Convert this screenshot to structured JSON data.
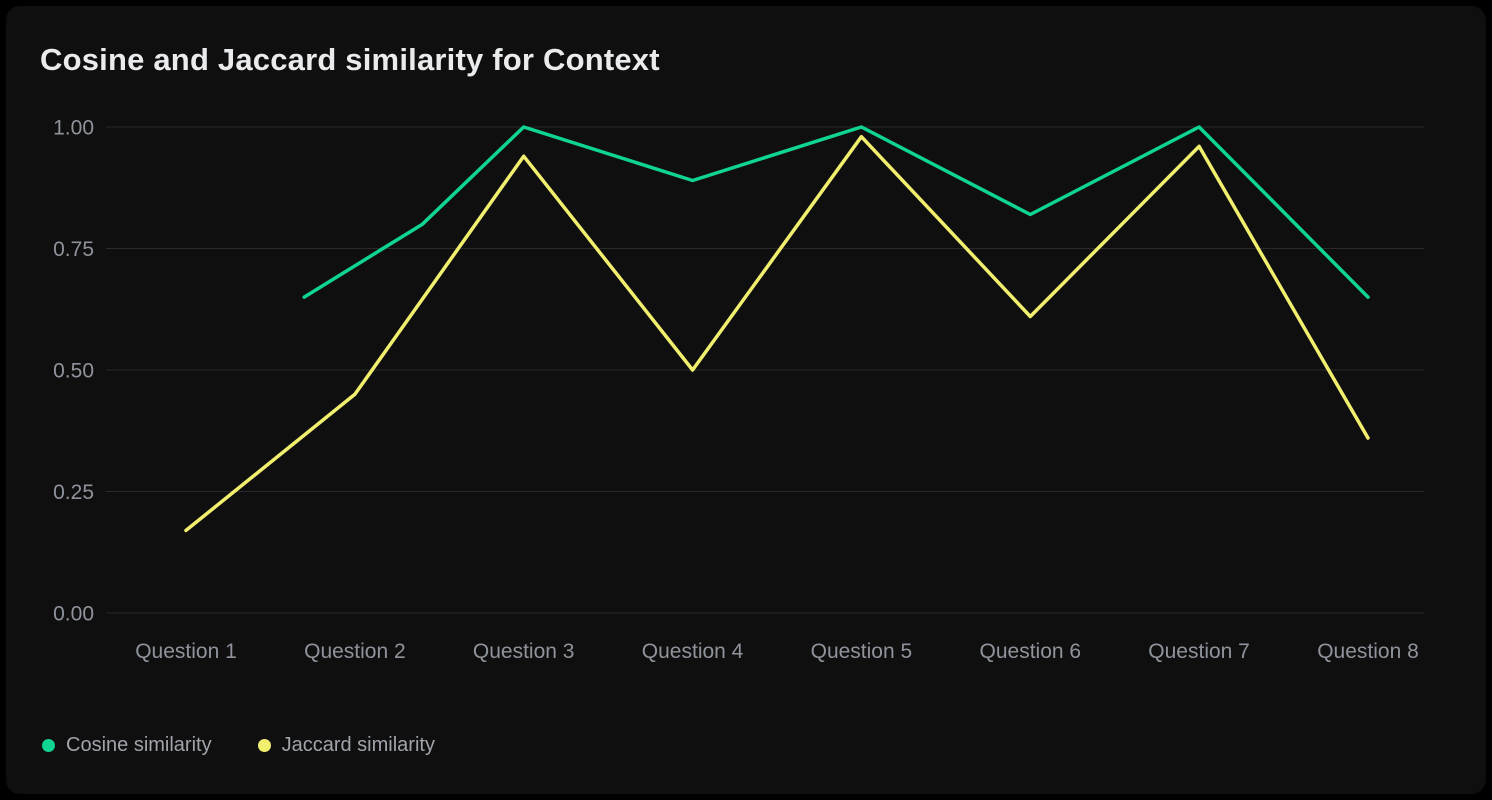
{
  "page": {
    "background": "#000000",
    "card_background": "#0f0f10"
  },
  "chart_data": {
    "type": "line",
    "title": "Cosine and Jaccard similarity for Context",
    "x_axis": {
      "categories": [
        "Question 1",
        "Question 2",
        "Question 3",
        "Question 4",
        "Question 5",
        "Question 6",
        "Question 7",
        "Question 8"
      ]
    },
    "y_axis": {
      "min": 0,
      "max": 1,
      "ticks": [
        {
          "value": 0,
          "label": "0.00"
        },
        {
          "value": 0.25,
          "label": "0.25"
        },
        {
          "value": 0.5,
          "label": "0.50"
        },
        {
          "value": 0.75,
          "label": "0.75"
        },
        {
          "value": 1,
          "label": "1.00"
        }
      ]
    },
    "grid": {
      "horizontal": true,
      "vertical": false,
      "color": "#2a2a2c"
    },
    "legend": {
      "position": "bottom-left"
    },
    "x_unit": "category index (1 = Question 1), fractional x means the line starts between labels",
    "series": [
      {
        "name": "Cosine similarity",
        "color": "#0fd492",
        "points": [
          {
            "x": 1.7,
            "y": 0.65
          },
          {
            "x": 2.4,
            "y": 0.8
          },
          {
            "x": 3,
            "y": 1.0
          },
          {
            "x": 4,
            "y": 0.89
          },
          {
            "x": 5,
            "y": 1.0
          },
          {
            "x": 6,
            "y": 0.82
          },
          {
            "x": 7,
            "y": 1.0
          },
          {
            "x": 8,
            "y": 0.65
          }
        ],
        "note": "visible line begins between Question 1 and Question 2 at 0.65"
      },
      {
        "name": "Jaccard similarity",
        "color": "#f2ef6e",
        "points": [
          {
            "x": 1,
            "y": 0.17
          },
          {
            "x": 2,
            "y": 0.45
          },
          {
            "x": 3,
            "y": 0.94
          },
          {
            "x": 4,
            "y": 0.5
          },
          {
            "x": 5,
            "y": 0.98
          },
          {
            "x": 6,
            "y": 0.61
          },
          {
            "x": 7,
            "y": 0.96
          },
          {
            "x": 8,
            "y": 0.36
          }
        ]
      }
    ],
    "theme": {
      "title_color": "#e9ebed",
      "axis_label_color": "#8f939b",
      "legend_label_color": "#a0a4ab",
      "line_width": 3.5
    }
  }
}
